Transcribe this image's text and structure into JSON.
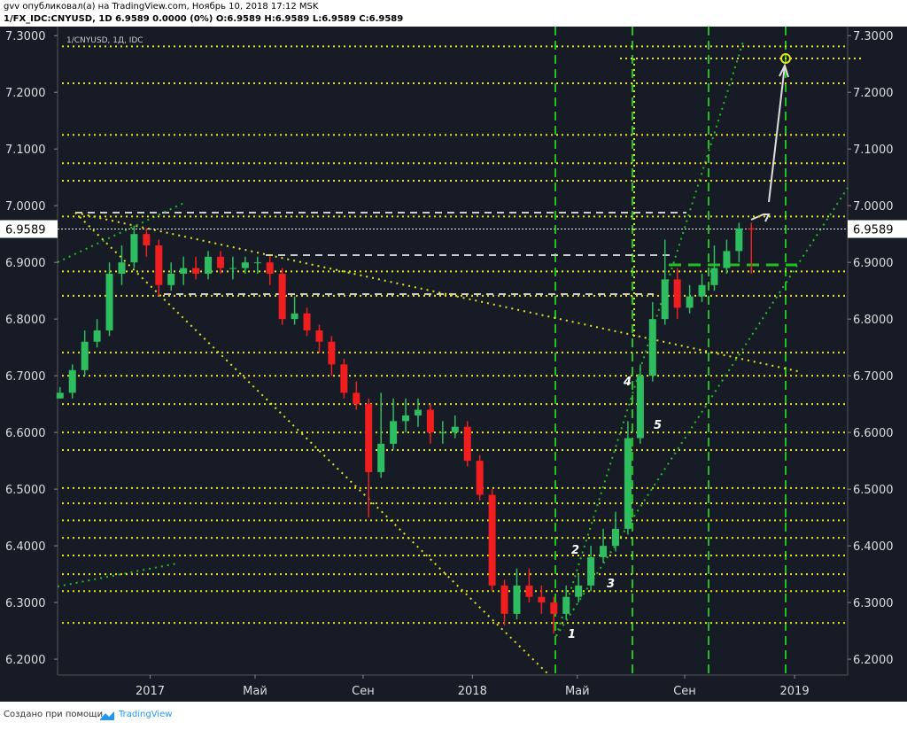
{
  "header": {
    "publisher": "gvv опубликовал(а) на TradingView.com, Ноябрь 10, 2018 17:12 MSK",
    "symbol_line": "1/FX_IDC:CNYUSD, 1D 6.9589 0.0000 (0%) O:6.9589 H:6.9589 L:6.9589 C:6.9589"
  },
  "chart_data": {
    "type": "candlestick",
    "pane_label": "1/CNYUSD, 1Д, IDC",
    "last_price": 6.9589,
    "up_color": "#2ebd5f",
    "down_color": "#f01e1e",
    "open": [
      6.66,
      6.67,
      6.71,
      6.76,
      6.78,
      6.88,
      6.9,
      6.95,
      6.93,
      6.86,
      6.88,
      6.89,
      6.88,
      6.91,
      6.89,
      6.89,
      6.9,
      6.9,
      6.88,
      6.8,
      6.81,
      6.78,
      6.76,
      6.72,
      6.67,
      6.65,
      6.53,
      6.58,
      6.62,
      6.63,
      6.64,
      6.6,
      6.6,
      6.61,
      6.55,
      6.49,
      6.33,
      6.28,
      6.33,
      6.31,
      6.3,
      6.28,
      6.31,
      6.33,
      6.38,
      6.4,
      6.43,
      6.59,
      6.7,
      6.8,
      6.87,
      6.82,
      6.84,
      6.86,
      6.89,
      6.92,
      6.96
    ],
    "high": [
      6.68,
      6.72,
      6.78,
      6.8,
      6.9,
      6.93,
      6.965,
      6.96,
      6.94,
      6.9,
      6.91,
      6.91,
      6.92,
      6.92,
      6.91,
      6.91,
      6.91,
      6.91,
      6.89,
      6.84,
      6.82,
      6.79,
      6.77,
      6.73,
      6.69,
      6.66,
      6.67,
      6.66,
      6.66,
      6.66,
      6.65,
      6.62,
      6.63,
      6.62,
      6.56,
      6.5,
      6.34,
      6.36,
      6.36,
      6.33,
      6.31,
      6.33,
      6.35,
      6.4,
      6.43,
      6.46,
      6.62,
      6.72,
      6.83,
      6.94,
      6.89,
      6.86,
      6.88,
      6.93,
      6.94,
      6.97,
      6.97
    ],
    "low": [
      6.66,
      6.66,
      6.7,
      6.75,
      6.77,
      6.86,
      6.89,
      6.91,
      6.84,
      6.85,
      6.86,
      6.87,
      6.87,
      6.88,
      6.87,
      6.88,
      6.88,
      6.86,
      6.79,
      6.79,
      6.77,
      6.74,
      6.7,
      6.66,
      6.64,
      6.45,
      6.52,
      6.57,
      6.6,
      6.61,
      6.58,
      6.58,
      6.59,
      6.54,
      6.48,
      6.32,
      6.26,
      6.27,
      6.3,
      6.28,
      6.245,
      6.27,
      6.3,
      6.32,
      6.37,
      6.39,
      6.42,
      6.58,
      6.69,
      6.79,
      6.8,
      6.81,
      6.83,
      6.85,
      6.88,
      6.9,
      6.88
    ],
    "close": [
      6.67,
      6.71,
      6.76,
      6.78,
      6.88,
      6.9,
      6.95,
      6.93,
      6.86,
      6.88,
      6.89,
      6.88,
      6.91,
      6.89,
      6.89,
      6.9,
      6.9,
      6.88,
      6.8,
      6.81,
      6.78,
      6.76,
      6.72,
      6.67,
      6.65,
      6.53,
      6.58,
      6.62,
      6.63,
      6.64,
      6.6,
      6.6,
      6.61,
      6.55,
      6.49,
      6.33,
      6.28,
      6.33,
      6.31,
      6.3,
      6.28,
      6.31,
      6.33,
      6.38,
      6.4,
      6.43,
      6.59,
      6.7,
      6.8,
      6.87,
      6.82,
      6.84,
      6.86,
      6.89,
      6.92,
      6.96,
      6.9589
    ],
    "xlim": [
      -0.2,
      63.8
    ],
    "xticks": [
      {
        "value": 7.3,
        "label": "2017"
      },
      {
        "value": 15.8,
        "label": "Май"
      },
      {
        "value": 24.55,
        "label": "Сен"
      },
      {
        "value": 33.4,
        "label": "2018"
      },
      {
        "value": 41.9,
        "label": "Май"
      },
      {
        "value": 50.6,
        "label": "Сен"
      },
      {
        "value": 59.5,
        "label": "2019"
      }
    ],
    "ylim": [
      6.172,
      7.316
    ],
    "yticks": [
      {
        "value": 6.2,
        "label": "6.2000"
      },
      {
        "value": 6.3,
        "label": "6.3000"
      },
      {
        "value": 6.4,
        "label": "6.4000"
      },
      {
        "value": 6.5,
        "label": "6.5000"
      },
      {
        "value": 6.6,
        "label": "6.6000"
      },
      {
        "value": 6.7,
        "label": "6.7000"
      },
      {
        "value": 6.8,
        "label": "6.8000"
      },
      {
        "value": 6.9,
        "label": "6.9000"
      },
      {
        "value": 7.0,
        "label": "7.0000"
      },
      {
        "value": 7.1,
        "label": "7.1000"
      },
      {
        "value": 7.2,
        "label": "7.2000"
      },
      {
        "value": 7.3,
        "label": "7.3000"
      }
    ],
    "levels": [
      7.281,
      7.216,
      7.125,
      7.075,
      7.044,
      6.981,
      6.884,
      6.841,
      6.741,
      6.7,
      6.65,
      6.6,
      6.569,
      6.502,
      6.475,
      6.445,
      6.414,
      6.383,
      6.35,
      6.32,
      6.264
    ],
    "level_color": "#e6e619",
    "wave_labels": [
      "1",
      "2",
      "3",
      "4",
      "5"
    ]
  },
  "footer": {
    "text": "Создано при помощи",
    "brand": "TradingView"
  }
}
